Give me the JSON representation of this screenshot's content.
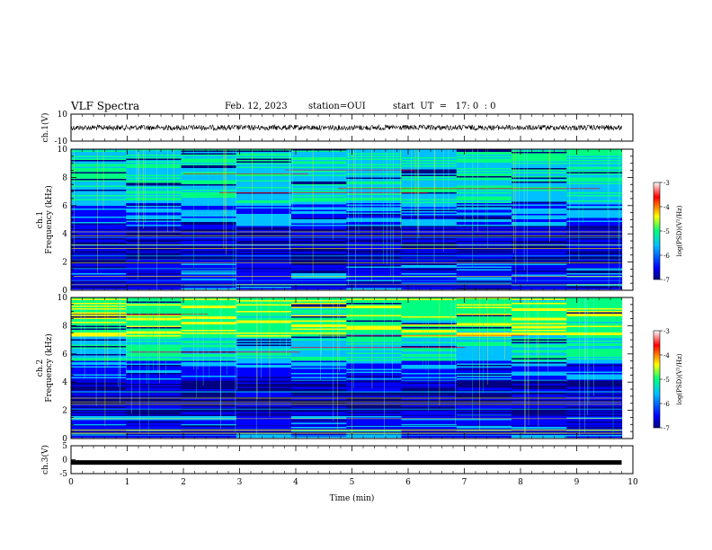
{
  "header": {
    "title": "VLF Spectra",
    "date": "Feb. 12, 2023",
    "station": "station=OUI",
    "start": "start  UT  =   17: 0  : 0"
  },
  "chart_data": [
    {
      "type": "line",
      "name": "waveform-ch1",
      "ylabel": "ch.1(V)",
      "ylim": [
        -10,
        10
      ],
      "yticks": [
        "10",
        "-10"
      ],
      "xlim": [
        0,
        10
      ],
      "data_end_min": 9.8,
      "baseline": 0,
      "amplitude": 2
    },
    {
      "type": "heatmap",
      "name": "spectrogram-ch1",
      "ylabel_lines": [
        "ch.1",
        "Frequency  (kHz)"
      ],
      "ylim": [
        0,
        10
      ],
      "yticks": [
        0,
        2,
        4,
        6,
        8,
        10
      ],
      "xlim": [
        0,
        10
      ],
      "data_end_min": 9.8,
      "colorbar": {
        "label": "log(PSD)(V²/Hz)",
        "range": [
          -7,
          -3
        ],
        "ticks": [
          "-3",
          "-4",
          "-5",
          "-6",
          "-7"
        ]
      }
    },
    {
      "type": "heatmap",
      "name": "spectrogram-ch2",
      "ylabel_lines": [
        "ch.2",
        "Frequency  (kHz)"
      ],
      "ylim": [
        0,
        10
      ],
      "yticks": [
        0,
        2,
        4,
        6,
        8,
        10
      ],
      "xlim": [
        0,
        10
      ],
      "data_end_min": 9.8,
      "colorbar": {
        "label": "log(PSD)(V²/Hz)",
        "range": [
          -7,
          -3
        ],
        "ticks": [
          "-3",
          "-4",
          "-5",
          "-6",
          "-7"
        ]
      }
    },
    {
      "type": "line",
      "name": "waveform-ch3",
      "ylabel": "ch.3(V)",
      "ylim": [
        -5,
        5
      ],
      "yticks": [
        "5",
        "0",
        "-5"
      ],
      "xlim": [
        0,
        10
      ],
      "data_end_min": 9.8,
      "baseline": -1,
      "amplitude": 0.3
    }
  ],
  "xaxis": {
    "label": "Time  (min)",
    "ticks": [
      "0",
      "1",
      "2",
      "3",
      "4",
      "5",
      "6",
      "7",
      "8",
      "9",
      "10"
    ]
  },
  "colors": {
    "colormap": [
      "#000080",
      "#0000ff",
      "#00c0ff",
      "#00ff80",
      "#ffff00",
      "#ff0000",
      "#ffffff"
    ]
  }
}
